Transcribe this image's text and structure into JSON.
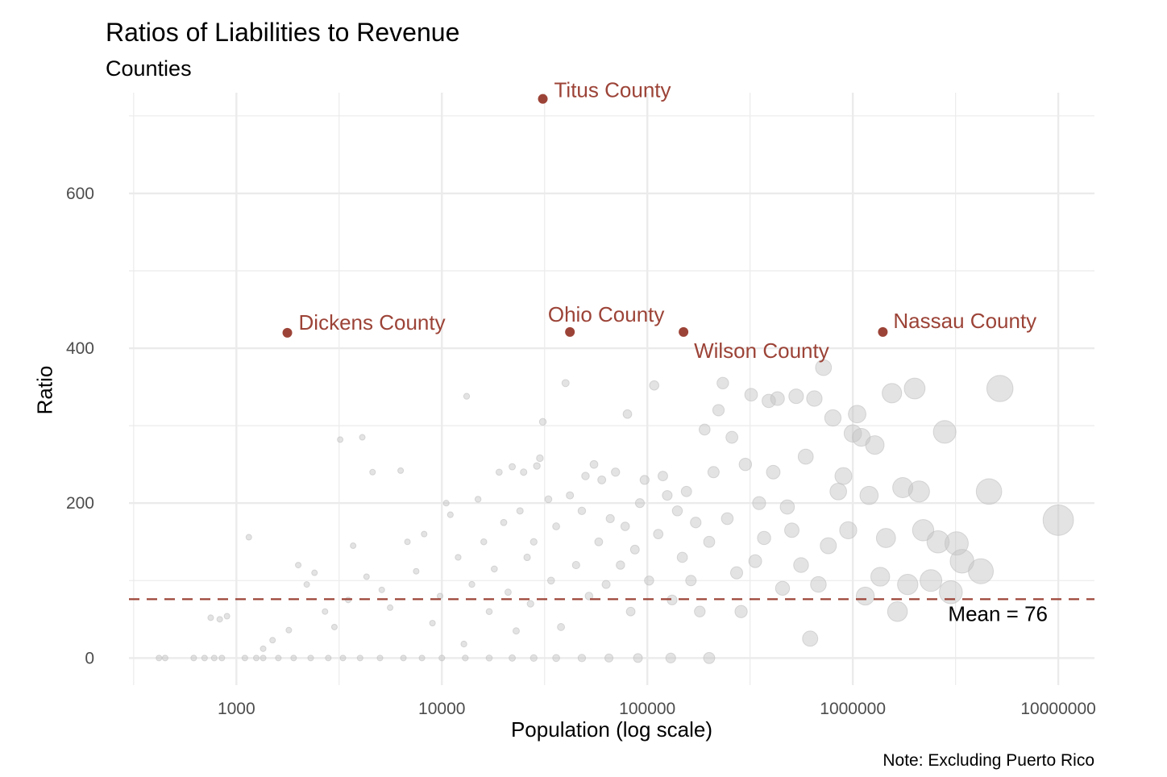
{
  "title": "Ratios of Liabilities to Revenue",
  "subtitle": "Counties",
  "caption": "Note: Excluding Puerto Rico",
  "colors": {
    "highlight": "#9c4337",
    "points": "#c0c0c0",
    "grid": "#ebebeb",
    "mean_line": "#9c4337"
  },
  "chart_data": {
    "type": "scatter",
    "title": "Ratios of Liabilities to Revenue",
    "subtitle": "Counties",
    "xlabel": "Population (log scale)",
    "ylabel": "Ratio",
    "x_scale": "log10",
    "xlim": [
      300,
      15000000
    ],
    "ylim": [
      -35,
      730
    ],
    "x_ticks": [
      1000,
      10000,
      100000,
      1000000,
      10000000
    ],
    "x_tick_labels": [
      "1000",
      "10000",
      "100000",
      "1000000",
      "10000000"
    ],
    "y_ticks": [
      0,
      200,
      400,
      600
    ],
    "y_tick_labels": [
      "0",
      "200",
      "400",
      "600"
    ],
    "grid": true,
    "mean": {
      "value": 76,
      "label": "Mean =  76"
    },
    "highlighted": [
      {
        "name": "Titus County",
        "x": 31000,
        "y": 722
      },
      {
        "name": "Dickens County",
        "x": 1770,
        "y": 420
      },
      {
        "name": "Ohio County",
        "x": 42000,
        "y": 421
      },
      {
        "name": "Wilson County",
        "x": 150000,
        "y": 421
      },
      {
        "name": "Nassau County",
        "x": 1400000,
        "y": 421
      }
    ],
    "points": [
      [
        420,
        0
      ],
      [
        450,
        0
      ],
      [
        620,
        0
      ],
      [
        700,
        0
      ],
      [
        780,
        0
      ],
      [
        850,
        0
      ],
      [
        1100,
        0
      ],
      [
        1250,
        0
      ],
      [
        1350,
        0
      ],
      [
        1600,
        0
      ],
      [
        1900,
        0
      ],
      [
        2300,
        0
      ],
      [
        2800,
        0
      ],
      [
        3300,
        0
      ],
      [
        4000,
        0
      ],
      [
        5000,
        0
      ],
      [
        6500,
        0
      ],
      [
        8000,
        0
      ],
      [
        10000,
        0
      ],
      [
        13000,
        0
      ],
      [
        17000,
        0
      ],
      [
        22000,
        0
      ],
      [
        28000,
        0
      ],
      [
        36000,
        0
      ],
      [
        48000,
        0
      ],
      [
        65000,
        0
      ],
      [
        90000,
        0
      ],
      [
        130000,
        0
      ],
      [
        200000,
        0
      ],
      [
        750,
        52
      ],
      [
        830,
        50
      ],
      [
        900,
        54
      ],
      [
        1150,
        156
      ],
      [
        1350,
        12
      ],
      [
        1500,
        23
      ],
      [
        1800,
        36
      ],
      [
        2000,
        120
      ],
      [
        2200,
        95
      ],
      [
        2400,
        110
      ],
      [
        2700,
        60
      ],
      [
        3000,
        40
      ],
      [
        3200,
        282
      ],
      [
        3500,
        75
      ],
      [
        3700,
        145
      ],
      [
        4100,
        285
      ],
      [
        4300,
        105
      ],
      [
        4600,
        240
      ],
      [
        5100,
        88
      ],
      [
        5600,
        65
      ],
      [
        6300,
        242
      ],
      [
        6800,
        150
      ],
      [
        7500,
        112
      ],
      [
        8200,
        160
      ],
      [
        9000,
        45
      ],
      [
        9800,
        80
      ],
      [
        10500,
        200
      ],
      [
        11000,
        185
      ],
      [
        12000,
        130
      ],
      [
        12800,
        18
      ],
      [
        13200,
        338
      ],
      [
        14000,
        95
      ],
      [
        15000,
        205
      ],
      [
        16000,
        150
      ],
      [
        17000,
        60
      ],
      [
        18000,
        115
      ],
      [
        19000,
        240
      ],
      [
        20000,
        175
      ],
      [
        21000,
        85
      ],
      [
        22000,
        247
      ],
      [
        23000,
        35
      ],
      [
        24000,
        190
      ],
      [
        25000,
        240
      ],
      [
        26000,
        130
      ],
      [
        27000,
        70
      ],
      [
        28000,
        150
      ],
      [
        29000,
        248
      ],
      [
        30000,
        258
      ],
      [
        31000,
        305
      ],
      [
        33000,
        205
      ],
      [
        34000,
        100
      ],
      [
        36000,
        170
      ],
      [
        38000,
        40
      ],
      [
        40000,
        355
      ],
      [
        42000,
        210
      ],
      [
        45000,
        120
      ],
      [
        48000,
        190
      ],
      [
        50000,
        235
      ],
      [
        52000,
        80
      ],
      [
        55000,
        250
      ],
      [
        58000,
        150
      ],
      [
        60000,
        230
      ],
      [
        63000,
        95
      ],
      [
        66000,
        180
      ],
      [
        70000,
        240
      ],
      [
        74000,
        120
      ],
      [
        78000,
        170
      ],
      [
        80000,
        315
      ],
      [
        83000,
        60
      ],
      [
        87000,
        140
      ],
      [
        92000,
        200
      ],
      [
        97000,
        230
      ],
      [
        102000,
        100
      ],
      [
        108000,
        352
      ],
      [
        113000,
        160
      ],
      [
        119000,
        235
      ],
      [
        125000,
        210
      ],
      [
        132000,
        75
      ],
      [
        140000,
        190
      ],
      [
        148000,
        130
      ],
      [
        155000,
        215
      ],
      [
        163000,
        100
      ],
      [
        172000,
        175
      ],
      [
        180000,
        60
      ],
      [
        190000,
        295
      ],
      [
        200000,
        150
      ],
      [
        210000,
        240
      ],
      [
        222000,
        320
      ],
      [
        233000,
        355
      ],
      [
        245000,
        180
      ],
      [
        258000,
        285
      ],
      [
        272000,
        110
      ],
      [
        286000,
        60
      ],
      [
        300000,
        250
      ],
      [
        320000,
        340
      ],
      [
        335000,
        125
      ],
      [
        350000,
        200
      ],
      [
        370000,
        155
      ],
      [
        390000,
        332
      ],
      [
        410000,
        240
      ],
      [
        430000,
        335
      ],
      [
        455000,
        90
      ],
      [
        480000,
        195
      ],
      [
        505000,
        165
      ],
      [
        530000,
        338
      ],
      [
        560000,
        120
      ],
      [
        590000,
        260
      ],
      [
        620000,
        25
      ],
      [
        650000,
        335
      ],
      [
        680000,
        95
      ],
      [
        720000,
        375
      ],
      [
        760000,
        145
      ],
      [
        800000,
        310
      ],
      [
        850000,
        215
      ],
      [
        900000,
        235
      ],
      [
        950000,
        165
      ],
      [
        1000000,
        290
      ],
      [
        1050000,
        315
      ],
      [
        1100000,
        285
      ],
      [
        1150000,
        80
      ],
      [
        1200000,
        210
      ],
      [
        1280000,
        275
      ],
      [
        1360000,
        105
      ],
      [
        1450000,
        155
      ],
      [
        1550000,
        342
      ],
      [
        1650000,
        60
      ],
      [
        1750000,
        220
      ],
      [
        1850000,
        95
      ],
      [
        2000000,
        348
      ],
      [
        2100000,
        215
      ],
      [
        2200000,
        165
      ],
      [
        2400000,
        100
      ],
      [
        2600000,
        150
      ],
      [
        2800000,
        292
      ],
      [
        3000000,
        85
      ],
      [
        3200000,
        148
      ],
      [
        3400000,
        125
      ],
      [
        4200000,
        112
      ],
      [
        4600000,
        215
      ],
      [
        5200000,
        348
      ],
      [
        10000000,
        178
      ]
    ]
  }
}
